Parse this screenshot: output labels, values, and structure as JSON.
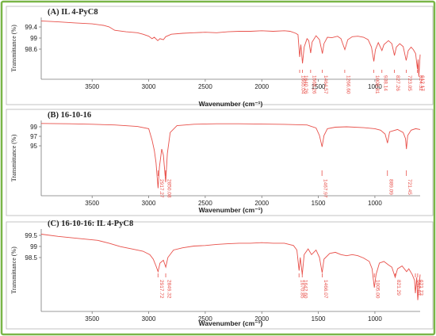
{
  "colors": {
    "border": "#7ab648",
    "spectrum": "#e8504a",
    "marker": "#e8504a",
    "axis": "#7a7a7a",
    "text": "#222222",
    "panel_bg": "#ffffff"
  },
  "chart_data": [
    {
      "type": "line",
      "panel": "A",
      "title": "(A) IL 4-PyC8",
      "xlabel": "Wavenumber (cm⁻¹)",
      "ylabel": "Transmittance (%)",
      "xlim": [
        3950,
        600
      ],
      "ylim": [
        98.4,
        99.65
      ],
      "x_ticks": [
        3500,
        3000,
        2500,
        2000,
        1500,
        1000
      ],
      "y_ticks": [
        "99.4",
        "99",
        "98.6"
      ],
      "peaks": [
        {
          "x": 1665.04,
          "label": "1665.04"
        },
        {
          "x": 1640.26,
          "label": "1640.26"
        },
        {
          "x": 1568.26,
          "label": "1568.26"
        },
        {
          "x": 1464.57,
          "label": "1464.57"
        },
        {
          "x": 1266.6,
          "label": "1266.60"
        },
        {
          "x": 1009.81,
          "label": "1009.81"
        },
        {
          "x": 938.14,
          "label": "938.14"
        },
        {
          "x": 827.26,
          "label": "827.26"
        },
        {
          "x": 723.05,
          "label": "723.05"
        },
        {
          "x": 624.32,
          "label": "624.32"
        },
        {
          "x": 612.17,
          "label": "612.17"
        }
      ],
      "series": [
        {
          "points": [
            [
              3950,
              99.58
            ],
            [
              3800,
              99.56
            ],
            [
              3650,
              99.54
            ],
            [
              3500,
              99.52
            ],
            [
              3400,
              99.49
            ],
            [
              3350,
              99.46
            ],
            [
              3300,
              99.39
            ],
            [
              3200,
              99.36
            ],
            [
              3100,
              99.34
            ],
            [
              3050,
              99.31
            ],
            [
              3000,
              99.27
            ],
            [
              2970,
              99.22
            ],
            [
              2950,
              99.25
            ],
            [
              2920,
              99.18
            ],
            [
              2900,
              99.22
            ],
            [
              2870,
              99.2
            ],
            [
              2850,
              99.26
            ],
            [
              2800,
              99.31
            ],
            [
              2700,
              99.33
            ],
            [
              2600,
              99.34
            ],
            [
              2500,
              99.35
            ],
            [
              2400,
              99.34
            ],
            [
              2300,
              99.36
            ],
            [
              2200,
              99.37
            ],
            [
              2100,
              99.37
            ],
            [
              2000,
              99.38
            ],
            [
              1900,
              99.37
            ],
            [
              1800,
              99.38
            ],
            [
              1750,
              99.37
            ],
            [
              1700,
              99.33
            ],
            [
              1680,
              99.3
            ],
            [
              1665,
              98.85
            ],
            [
              1655,
              99.1
            ],
            [
              1640,
              98.72
            ],
            [
              1625,
              99.05
            ],
            [
              1600,
              99.22
            ],
            [
              1585,
              99.18
            ],
            [
              1568,
              98.93
            ],
            [
              1555,
              99.15
            ],
            [
              1520,
              99.28
            ],
            [
              1490,
              99.2
            ],
            [
              1464,
              98.92
            ],
            [
              1450,
              99.12
            ],
            [
              1420,
              99.25
            ],
            [
              1380,
              99.24
            ],
            [
              1330,
              99.27
            ],
            [
              1300,
              99.22
            ],
            [
              1266,
              99.0
            ],
            [
              1240,
              99.2
            ],
            [
              1200,
              99.26
            ],
            [
              1150,
              99.27
            ],
            [
              1100,
              99.25
            ],
            [
              1060,
              99.2
            ],
            [
              1030,
              99.05
            ],
            [
              1009,
              98.76
            ],
            [
              995,
              99.0
            ],
            [
              970,
              99.14
            ],
            [
              938,
              98.98
            ],
            [
              920,
              99.1
            ],
            [
              880,
              99.18
            ],
            [
              850,
              99.12
            ],
            [
              827,
              98.88
            ],
            [
              810,
              99.05
            ],
            [
              780,
              99.12
            ],
            [
              750,
              99.06
            ],
            [
              723,
              98.78
            ],
            [
              705,
              98.98
            ],
            [
              680,
              99.05
            ],
            [
              660,
              99.0
            ],
            [
              640,
              98.92
            ],
            [
              624,
              98.6
            ],
            [
              618,
              98.8
            ],
            [
              612,
              98.45
            ],
            [
              605,
              98.7
            ],
            [
              600,
              98.9
            ]
          ]
        }
      ]
    },
    {
      "type": "line",
      "panel": "B",
      "title": "(B) 16-10-16",
      "xlabel": "Wavenumber (cm⁻¹)",
      "ylabel": "Transmittance (%)",
      "xlim": [
        3950,
        600
      ],
      "ylim": [
        94.6,
        99.6
      ],
      "x_ticks": [
        3500,
        3000,
        2500,
        2000,
        1500,
        1000
      ],
      "y_ticks": [
        "99",
        "97",
        "95"
      ],
      "peaks": [
        {
          "x": 2917.27,
          "label": "2917.27"
        },
        {
          "x": 2850.08,
          "label": "2850.08"
        },
        {
          "x": 1467.97,
          "label": "1467.97"
        },
        {
          "x": 889.09,
          "label": "889.09"
        },
        {
          "x": 721.45,
          "label": "721.45"
        }
      ],
      "series": [
        {
          "points": [
            [
              3950,
              99.4
            ],
            [
              3700,
              99.38
            ],
            [
              3500,
              99.35
            ],
            [
              3300,
              99.3
            ],
            [
              3100,
              99.2
            ],
            [
              3000,
              99.05
            ],
            [
              2970,
              98.3
            ],
            [
              2950,
              97.6
            ],
            [
              2935,
              96.8
            ],
            [
              2917,
              95.1
            ],
            [
              2905,
              96.5
            ],
            [
              2885,
              97.7
            ],
            [
              2870,
              97.3
            ],
            [
              2850,
              95.5
            ],
            [
              2835,
              97.4
            ],
            [
              2810,
              98.8
            ],
            [
              2750,
              99.25
            ],
            [
              2600,
              99.35
            ],
            [
              2400,
              99.38
            ],
            [
              2200,
              99.38
            ],
            [
              2000,
              99.36
            ],
            [
              1800,
              99.34
            ],
            [
              1600,
              99.3
            ],
            [
              1520,
              99.1
            ],
            [
              1490,
              98.6
            ],
            [
              1467,
              97.85
            ],
            [
              1450,
              98.6
            ],
            [
              1420,
              99.05
            ],
            [
              1350,
              99.15
            ],
            [
              1250,
              99.18
            ],
            [
              1100,
              99.12
            ],
            [
              1000,
              99.05
            ],
            [
              950,
              98.95
            ],
            [
              910,
              98.7
            ],
            [
              889,
              98.1
            ],
            [
              870,
              98.85
            ],
            [
              800,
              99.0
            ],
            [
              750,
              98.8
            ],
            [
              730,
              98.4
            ],
            [
              721,
              97.7
            ],
            [
              710,
              98.6
            ],
            [
              680,
              98.95
            ],
            [
              640,
              99.05
            ],
            [
              600,
              99.0
            ]
          ]
        }
      ]
    },
    {
      "type": "line",
      "panel": "C",
      "title": "(C) 16-10-16: IL 4-PyC8",
      "xlabel": "Wavenumber (cm⁻¹)",
      "ylabel": "Transmittance (%)",
      "xlim": [
        3950,
        600
      ],
      "ylim": [
        98.3,
        99.75
      ],
      "x_ticks": [
        3500,
        3000,
        2500,
        2000,
        1500,
        1000
      ],
      "y_ticks": [
        "99.5",
        "99",
        "98.5"
      ],
      "peaks": [
        {
          "x": 2917.72,
          "label": "2917.72"
        },
        {
          "x": 2849.32,
          "label": "2849.32"
        },
        {
          "x": 1670.85,
          "label": "1670.85"
        },
        {
          "x": 1642.6,
          "label": "1642.60"
        },
        {
          "x": 1466.07,
          "label": "1466.07"
        },
        {
          "x": 1005.0,
          "label": "1005.00"
        },
        {
          "x": 821.29,
          "label": "821.29"
        },
        {
          "x": 642.02,
          "label": "642.02"
        },
        {
          "x": 621.73,
          "label": "621.73"
        }
      ],
      "series": [
        {
          "points": [
            [
              3950,
              99.66
            ],
            [
              3800,
              99.62
            ],
            [
              3600,
              99.58
            ],
            [
              3450,
              99.55
            ],
            [
              3350,
              99.5
            ],
            [
              3250,
              99.44
            ],
            [
              3150,
              99.4
            ],
            [
              3050,
              99.36
            ],
            [
              2990,
              99.3
            ],
            [
              2960,
              99.22
            ],
            [
              2935,
              99.1
            ],
            [
              2917,
              99.0
            ],
            [
              2900,
              99.15
            ],
            [
              2870,
              99.2
            ],
            [
              2849,
              99.08
            ],
            [
              2830,
              99.25
            ],
            [
              2780,
              99.38
            ],
            [
              2700,
              99.42
            ],
            [
              2600,
              99.45
            ],
            [
              2500,
              99.46
            ],
            [
              2400,
              99.48
            ],
            [
              2300,
              99.49
            ],
            [
              2200,
              99.5
            ],
            [
              2100,
              99.5
            ],
            [
              2000,
              99.51
            ],
            [
              1900,
              99.5
            ],
            [
              1800,
              99.5
            ],
            [
              1720,
              99.46
            ],
            [
              1690,
              99.38
            ],
            [
              1670,
              99.02
            ],
            [
              1660,
              99.25
            ],
            [
              1642,
              98.95
            ],
            [
              1625,
              99.3
            ],
            [
              1590,
              99.4
            ],
            [
              1560,
              99.3
            ],
            [
              1520,
              99.38
            ],
            [
              1490,
              99.25
            ],
            [
              1466,
              98.98
            ],
            [
              1450,
              99.22
            ],
            [
              1400,
              99.32
            ],
            [
              1350,
              99.34
            ],
            [
              1300,
              99.3
            ],
            [
              1250,
              99.28
            ],
            [
              1200,
              99.3
            ],
            [
              1150,
              99.28
            ],
            [
              1100,
              99.24
            ],
            [
              1050,
              99.18
            ],
            [
              1025,
              99.05
            ],
            [
              1005,
              98.72
            ],
            [
              990,
              98.95
            ],
            [
              960,
              99.15
            ],
            [
              920,
              99.18
            ],
            [
              880,
              99.12
            ],
            [
              850,
              99.08
            ],
            [
              821,
              98.9
            ],
            [
              800,
              99.05
            ],
            [
              760,
              99.1
            ],
            [
              720,
              99.0
            ],
            [
              700,
              99.05
            ],
            [
              670,
              98.95
            ],
            [
              650,
              98.85
            ],
            [
              642,
              98.62
            ],
            [
              630,
              98.9
            ],
            [
              621,
              98.5
            ],
            [
              610,
              98.75
            ],
            [
              600,
              98.95
            ]
          ]
        }
      ]
    }
  ]
}
